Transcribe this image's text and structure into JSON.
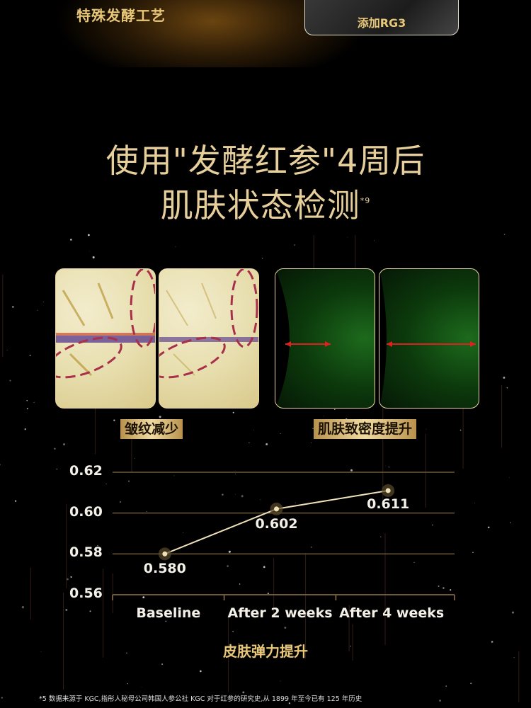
{
  "header": {
    "process_label": "特殊发酵工艺",
    "rg3_label": "添加RG3"
  },
  "headline": {
    "line1": "使用\"发酵红参\"4周后",
    "line2": "肌肤状态检测",
    "footnote_mark": "*9"
  },
  "images": {
    "wrinkle_caption": "皱纹减少",
    "density_caption": "肌肤致密度提升"
  },
  "colors": {
    "gold": "#e8c779",
    "line": "#f0e2b8",
    "grid": "#6e5a3a",
    "arrow": "#e02020",
    "ellipse": "#a8304a"
  },
  "chart_data": {
    "type": "line",
    "title": "皮肤弹力提升",
    "categories": [
      "Baseline",
      "After 2 weeks",
      "After 4 weeks"
    ],
    "values": [
      0.58,
      0.602,
      0.611
    ],
    "data_labels": [
      "0.580",
      "0.602",
      "0.611"
    ],
    "yticks": [
      "0.62",
      "0.60",
      "0.58",
      "0.56"
    ],
    "ylim": [
      0.56,
      0.62
    ],
    "grid": true
  },
  "footnote": "*5 数据来源于 KGC,指彤人秘母公司韩国人参公社 KGC 对于红参的研究史,从 1899 年至今已有 125 年历史"
}
